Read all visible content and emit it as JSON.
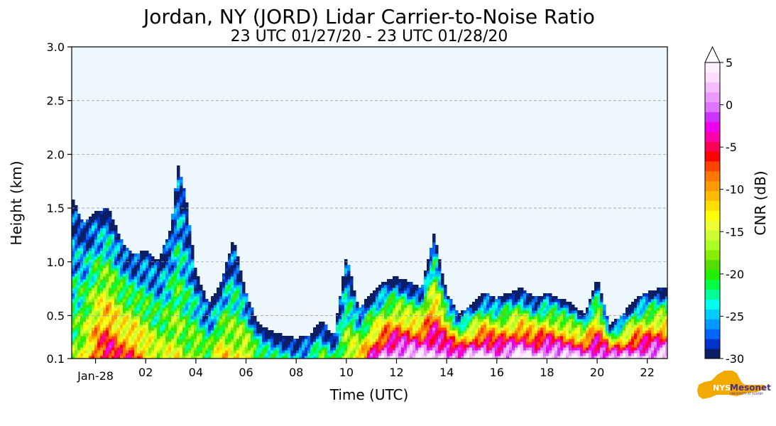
{
  "chart_data": {
    "type": "heatmap",
    "title": "Jordan, NY (JORD) Lidar Carrier-to-Noise Ratio",
    "subtitle": "23 UTC 01/27/20 - 23 UTC 01/28/20",
    "xlabel": "Time (UTC)",
    "ylabel": "Height (km)",
    "colorbar_label": "CNR (dB)",
    "xlim": [
      -0.95,
      22.8
    ],
    "ylim": [
      0.1,
      3.0
    ],
    "grid": "horizontal dashed",
    "x_ticks": [
      {
        "value": 0,
        "label": "Jan-28"
      },
      {
        "value": 2,
        "label": "02"
      },
      {
        "value": 4,
        "label": "04"
      },
      {
        "value": 6,
        "label": "06"
      },
      {
        "value": 8,
        "label": "08"
      },
      {
        "value": 10,
        "label": "10"
      },
      {
        "value": 12,
        "label": "12"
      },
      {
        "value": 14,
        "label": "14"
      },
      {
        "value": 16,
        "label": "16"
      },
      {
        "value": 18,
        "label": "18"
      },
      {
        "value": 20,
        "label": "20"
      },
      {
        "value": 22,
        "label": "22"
      }
    ],
    "y_ticks": [
      {
        "value": 0.1,
        "label": "0.1"
      },
      {
        "value": 0.5,
        "label": "0.5"
      },
      {
        "value": 1.0,
        "label": "1.0"
      },
      {
        "value": 1.5,
        "label": "1.5"
      },
      {
        "value": 2.0,
        "label": "2.0"
      },
      {
        "value": 2.5,
        "label": "2.5"
      },
      {
        "value": 3.0,
        "label": "3.0"
      }
    ],
    "colorbar": {
      "range": [
        -30,
        5
      ],
      "extend": "max",
      "ticks": [
        {
          "value": 5,
          "label": "5"
        },
        {
          "value": 0,
          "label": "0"
        },
        {
          "value": -5,
          "label": "-5"
        },
        {
          "value": -10,
          "label": "-10"
        },
        {
          "value": -15,
          "label": "-15"
        },
        {
          "value": -20,
          "label": "-20"
        },
        {
          "value": -25,
          "label": "-25"
        },
        {
          "value": -30,
          "label": "-30"
        }
      ],
      "colors": [
        "#0a1f66",
        "#0033cc",
        "#0066ff",
        "#0099ff",
        "#00ccff",
        "#00ffee",
        "#00ff99",
        "#00ff44",
        "#22ee00",
        "#55dd00",
        "#88ee00",
        "#aaff22",
        "#ccff33",
        "#eeff33",
        "#ffff00",
        "#ffdd00",
        "#ffbb00",
        "#ff9900",
        "#ff7700",
        "#ff4400",
        "#ff0000",
        "#ff0055",
        "#ff00aa",
        "#ee00ee",
        "#cc33ff",
        "#dd77ff",
        "#ee99ff",
        "#f7bbff",
        "#ffddff",
        "#fff0ff"
      ]
    },
    "background_color": "#eef6fe",
    "profile": {
      "x": [
        -0.95,
        -0.5,
        0,
        0.5,
        1.0,
        1.5,
        2.0,
        2.5,
        3.0,
        3.3,
        3.6,
        4.0,
        4.5,
        5.0,
        5.5,
        6.0,
        6.5,
        7.0,
        7.5,
        8.0,
        8.5,
        9.0,
        9.5,
        10.0,
        10.5,
        11.0,
        11.5,
        12.0,
        12.5,
        13.0,
        13.5,
        14.0,
        14.5,
        15.0,
        15.5,
        16.0,
        16.5,
        17.0,
        17.5,
        18.0,
        18.5,
        19.0,
        19.5,
        20.0,
        20.5,
        21.0,
        21.5,
        22.0,
        22.5,
        22.8
      ],
      "top": [
        1.6,
        1.35,
        1.45,
        1.5,
        1.2,
        1.05,
        1.1,
        1.0,
        1.3,
        1.9,
        1.6,
        0.9,
        0.6,
        0.8,
        1.2,
        0.7,
        0.4,
        0.35,
        0.3,
        0.28,
        0.3,
        0.45,
        0.3,
        1.05,
        0.55,
        0.7,
        0.8,
        0.85,
        0.8,
        0.75,
        1.25,
        0.7,
        0.5,
        0.6,
        0.7,
        0.65,
        0.7,
        0.75,
        0.65,
        0.7,
        0.65,
        0.6,
        0.5,
        0.85,
        0.4,
        0.5,
        0.65,
        0.7,
        0.75,
        0.75
      ],
      "intensity": [
        0.3,
        0.4,
        0.6,
        0.7,
        0.6,
        0.6,
        0.5,
        0.4,
        0.4,
        0.4,
        0.3,
        0.4,
        0.3,
        0.5,
        0.4,
        0.5,
        0.3,
        0.2,
        0.2,
        0.2,
        0.2,
        0.3,
        0.2,
        0.4,
        0.5,
        0.7,
        0.85,
        0.9,
        0.9,
        0.9,
        0.85,
        0.9,
        0.85,
        0.9,
        0.95,
        0.9,
        0.9,
        0.95,
        0.9,
        0.95,
        0.9,
        0.9,
        0.9,
        0.85,
        0.9,
        0.85,
        0.9,
        0.9,
        0.9,
        0.9
      ]
    }
  },
  "logo": {
    "short": "NYS",
    "name": "Mesonet",
    "tagline": "UNIVERSITY AT ALBANY",
    "colors": {
      "state": "#f2a900",
      "text": "#4b2e83"
    }
  }
}
